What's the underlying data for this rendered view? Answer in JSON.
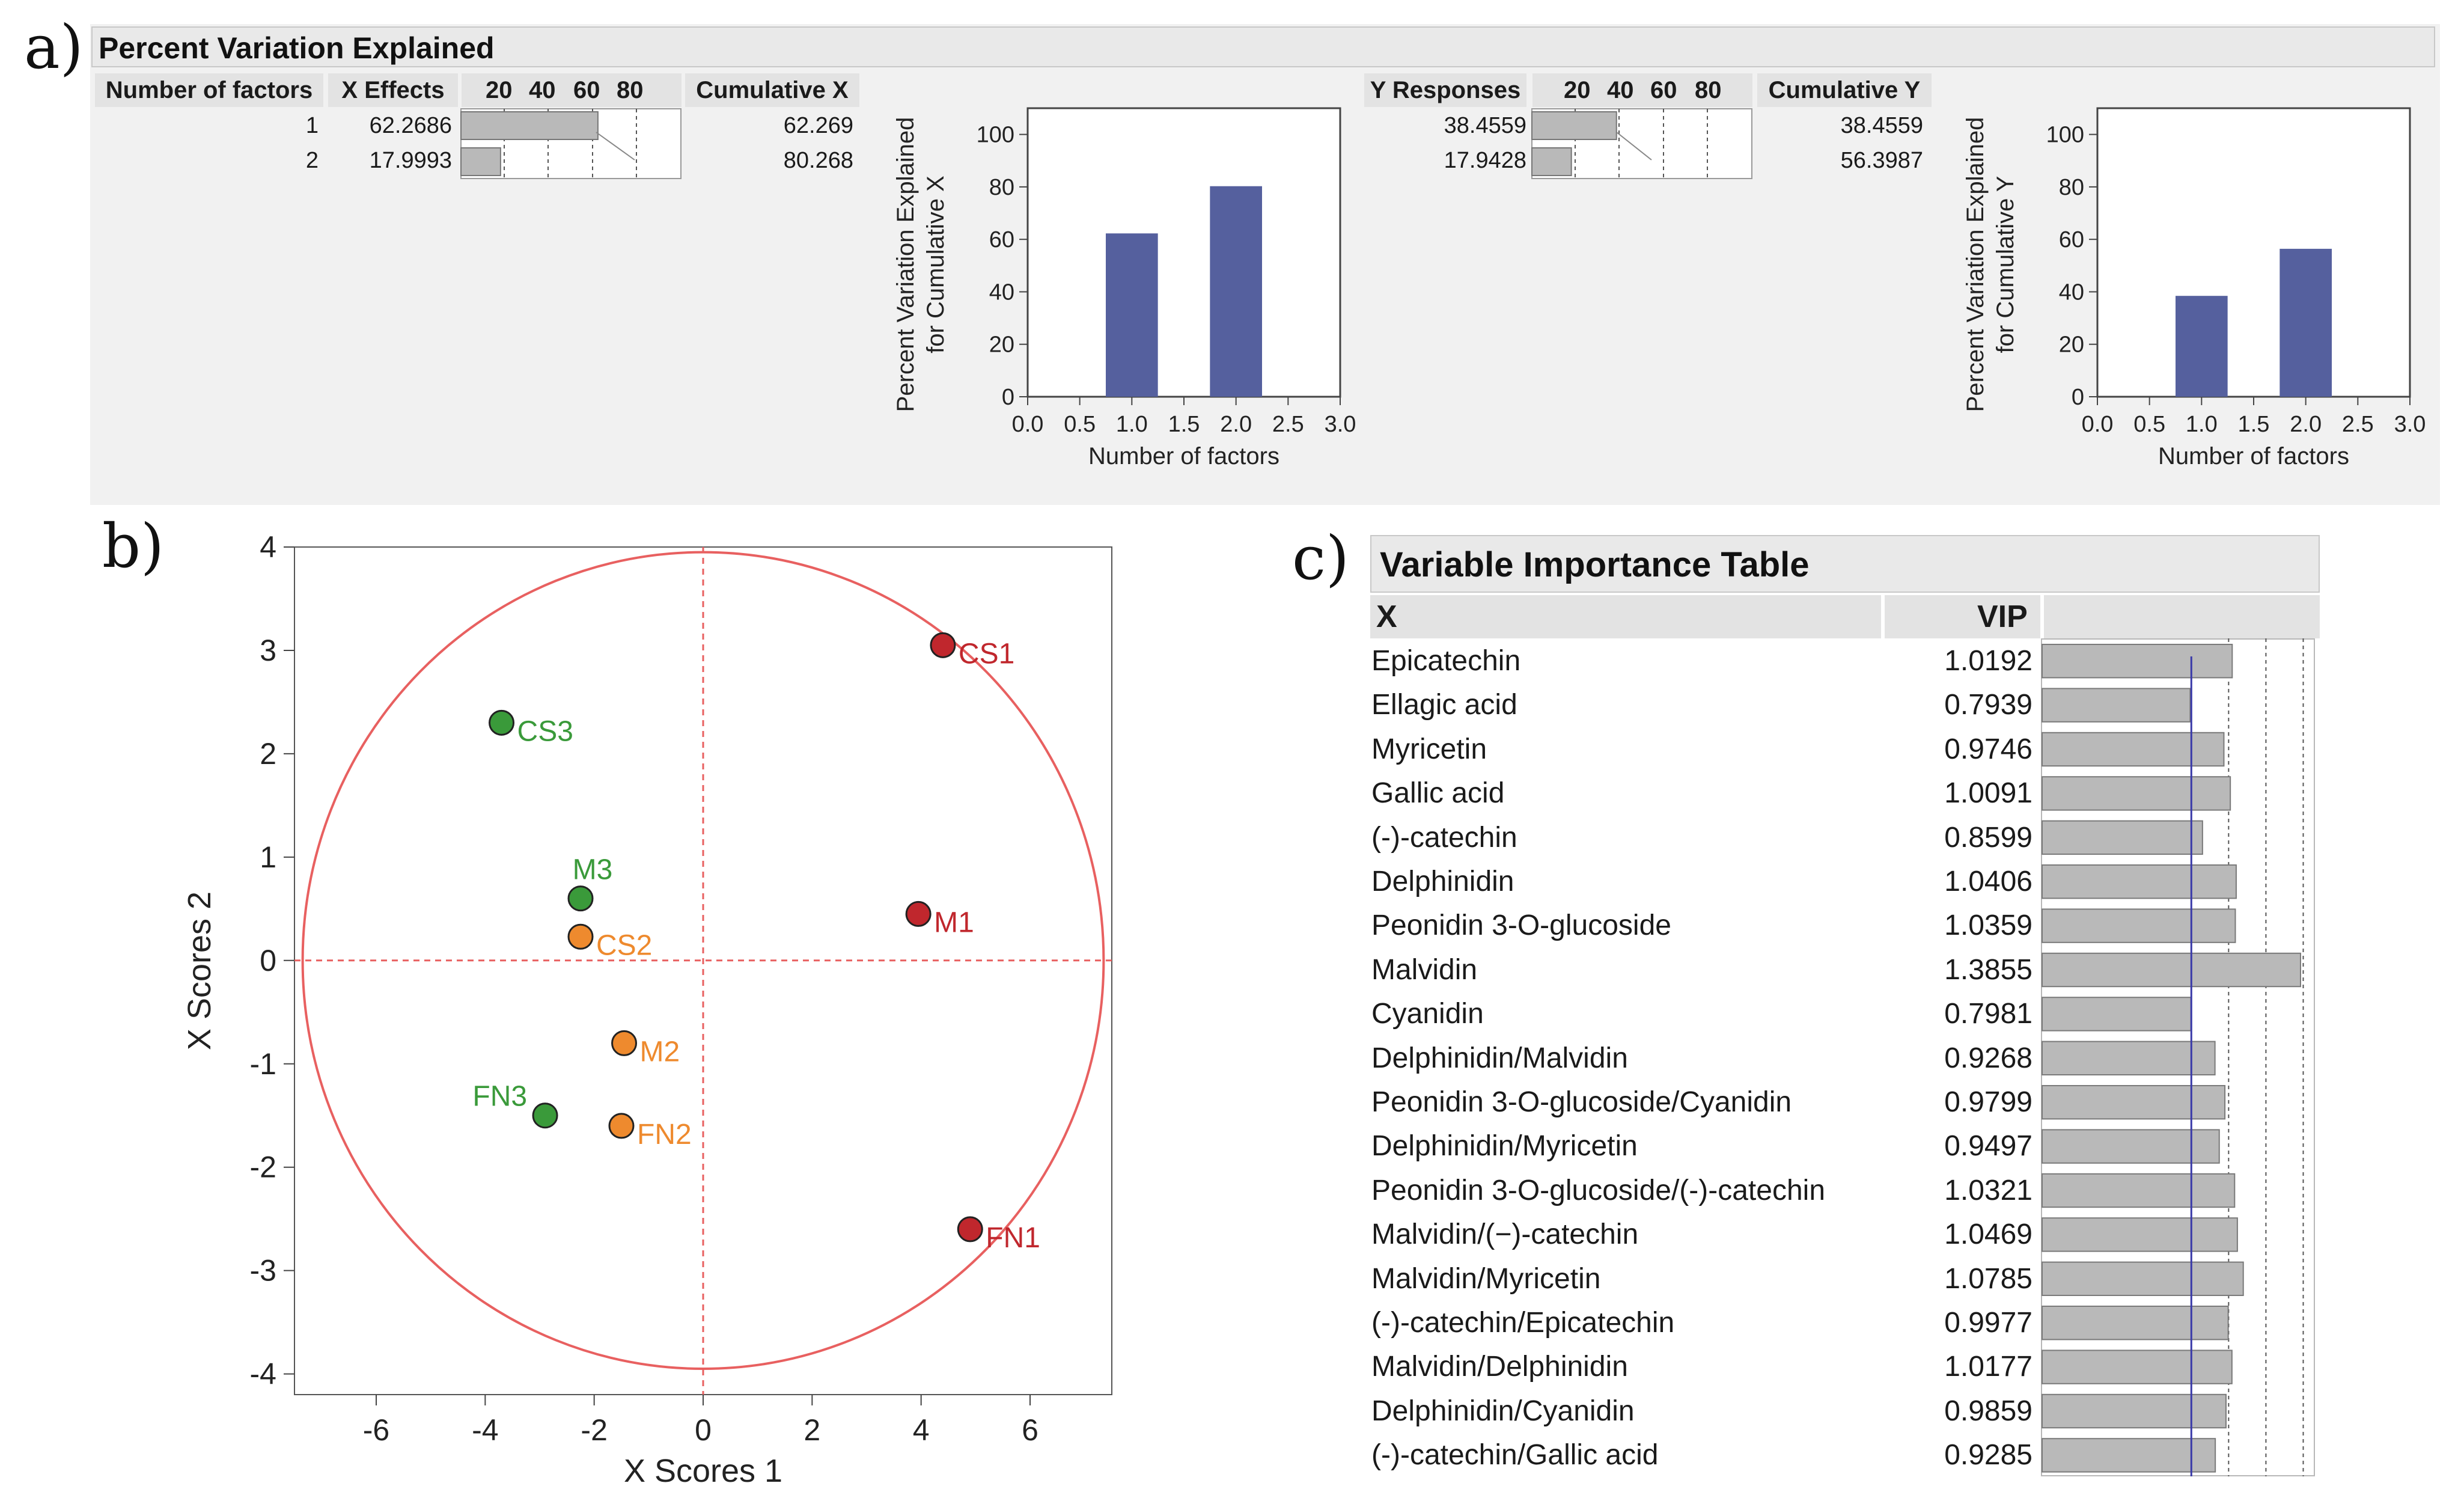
{
  "panels": {
    "a": "a)",
    "b": "b)",
    "c": "c)"
  },
  "percent_variation": {
    "title": "Percent Variation Explained",
    "x_table": {
      "headers": {
        "factors": "Number of factors",
        "effects": "X Effects",
        "scale": [
          "20",
          "40",
          "60",
          "80"
        ],
        "cumulative": "Cumulative X"
      },
      "rows": [
        {
          "n": "1",
          "effect": "62.2686",
          "cumulative": "62.269",
          "effect_value": 62.2686
        },
        {
          "n": "2",
          "effect": "17.9993",
          "cumulative": "80.268",
          "effect_value": 17.9993
        }
      ]
    },
    "y_table": {
      "headers": {
        "responses": "Y Responses",
        "scale": [
          "20",
          "40",
          "60",
          "80"
        ],
        "cumulative": "Cumulative Y"
      },
      "rows": [
        {
          "effect": "38.4559",
          "cumulative": "38.4559",
          "effect_value": 38.4559
        },
        {
          "effect": "17.9428",
          "cumulative": "56.3987",
          "effect_value": 17.9428
        }
      ]
    }
  },
  "chart_data": [
    {
      "type": "bar",
      "id": "cumx",
      "x": [
        1.0,
        2.0
      ],
      "values": [
        62.269,
        80.268
      ],
      "ylabel_line1": "Percent Variation Explained",
      "ylabel_line2": "for Cumulative X",
      "xlabel": "Number of factors",
      "xlim": [
        0,
        3
      ],
      "ylim": [
        0,
        110
      ],
      "xticks": [
        "0.0",
        "0.5",
        "1.0",
        "1.5",
        "2.0",
        "2.5",
        "3.0"
      ],
      "yticks": [
        "0",
        "20",
        "40",
        "60",
        "80",
        "100"
      ],
      "color": "#55609e"
    },
    {
      "type": "bar",
      "id": "cumy",
      "x": [
        1.0,
        2.0
      ],
      "values": [
        38.4559,
        56.3987
      ],
      "ylabel_line1": "Percent Variation Explained",
      "ylabel_line2": "for Cumulative Y",
      "xlabel": "Number of factors",
      "xlim": [
        0,
        3
      ],
      "ylim": [
        0,
        110
      ],
      "xticks": [
        "0.0",
        "0.5",
        "1.0",
        "1.5",
        "2.0",
        "2.5",
        "3.0"
      ],
      "yticks": [
        "0",
        "20",
        "40",
        "60",
        "80",
        "100"
      ],
      "color": "#55609e"
    },
    {
      "type": "scatter",
      "id": "scores",
      "xlabel": "X Scores 1",
      "ylabel": "X Scores 2",
      "xlim": [
        -7.5,
        7.5
      ],
      "ylim": [
        -4.2,
        4.0
      ],
      "xticks": [
        "-6",
        "-4",
        "-2",
        "0",
        "2",
        "4",
        "6"
      ],
      "xtick_values": [
        -6,
        -4,
        -2,
        0,
        2,
        4,
        6
      ],
      "yticks": [
        "4",
        "3",
        "2",
        "1",
        "0",
        "-1",
        "-2",
        "-3",
        "-4"
      ],
      "ytick_values": [
        4,
        3,
        2,
        1,
        0,
        -1,
        -2,
        -3,
        -4
      ],
      "points": [
        {
          "label": "CS1",
          "x": 4.4,
          "y": 3.05,
          "group": "red"
        },
        {
          "label": "CS3",
          "x": -3.7,
          "y": 2.3,
          "group": "green"
        },
        {
          "label": "M3",
          "x": -2.25,
          "y": 0.6,
          "group": "green"
        },
        {
          "label": "CS2",
          "x": -2.25,
          "y": 0.23,
          "group": "orange"
        },
        {
          "label": "M1",
          "x": 3.95,
          "y": 0.45,
          "group": "red"
        },
        {
          "label": "M2",
          "x": -1.45,
          "y": -0.8,
          "group": "orange"
        },
        {
          "label": "FN3",
          "x": -2.9,
          "y": -1.5,
          "group": "green"
        },
        {
          "label": "FN2",
          "x": -1.5,
          "y": -1.6,
          "group": "orange"
        },
        {
          "label": "FN1",
          "x": 4.9,
          "y": -2.6,
          "group": "red"
        }
      ],
      "colors": {
        "red": "#c0272d",
        "green": "#3a9a3a",
        "orange": "#ee8a2e",
        "circle": "#e86060"
      },
      "ellipse": {
        "rx": 7.35,
        "ry": 3.95
      }
    },
    {
      "type": "bar",
      "id": "vip",
      "title": "Variable Importance Table",
      "col_x": "X",
      "col_vip": "VIP",
      "threshold": 0.8,
      "xlim": [
        0,
        1.45
      ],
      "rows": [
        {
          "name": "Epicatechin",
          "vip": "1.0192",
          "value": 1.0192
        },
        {
          "name": "Ellagic acid",
          "vip": "0.7939",
          "value": 0.7939
        },
        {
          "name": "Myricetin",
          "vip": "0.9746",
          "value": 0.9746
        },
        {
          "name": "Gallic acid",
          "vip": "1.0091",
          "value": 1.0091
        },
        {
          "name": "(-)-catechin",
          "vip": "0.8599",
          "value": 0.8599
        },
        {
          "name": "Delphinidin",
          "vip": "1.0406",
          "value": 1.0406
        },
        {
          "name": "Peonidin 3-O-glucoside",
          "vip": "1.0359",
          "value": 1.0359
        },
        {
          "name": "Malvidin",
          "vip": "1.3855",
          "value": 1.3855
        },
        {
          "name": "Cyanidin",
          "vip": "0.7981",
          "value": 0.7981
        },
        {
          "name": "Delphinidin/Malvidin",
          "vip": "0.9268",
          "value": 0.9268
        },
        {
          "name": "Peonidin 3-O-glucoside/Cyanidin",
          "vip": "0.9799",
          "value": 0.9799
        },
        {
          "name": "Delphinidin/Myricetin",
          "vip": "0.9497",
          "value": 0.9497
        },
        {
          "name": "Peonidin 3-O-glucoside/(-)-catechin",
          "vip": "1.0321",
          "value": 1.0321
        },
        {
          "name": "Malvidin/(−)-catechin",
          "vip": "1.0469",
          "value": 1.0469
        },
        {
          "name": "Malvidin/Myricetin",
          "vip": "1.0785",
          "value": 1.0785
        },
        {
          "name": "(-)-catechin/Epicatechin",
          "vip": "0.9977",
          "value": 0.9977
        },
        {
          "name": "Malvidin/Delphinidin",
          "vip": "1.0177",
          "value": 1.0177
        },
        {
          "name": "Delphinidin/Cyanidin",
          "vip": "0.9859",
          "value": 0.9859
        },
        {
          "name": "(-)-catechin/Gallic acid",
          "vip": "0.9285",
          "value": 0.9285
        }
      ]
    }
  ]
}
